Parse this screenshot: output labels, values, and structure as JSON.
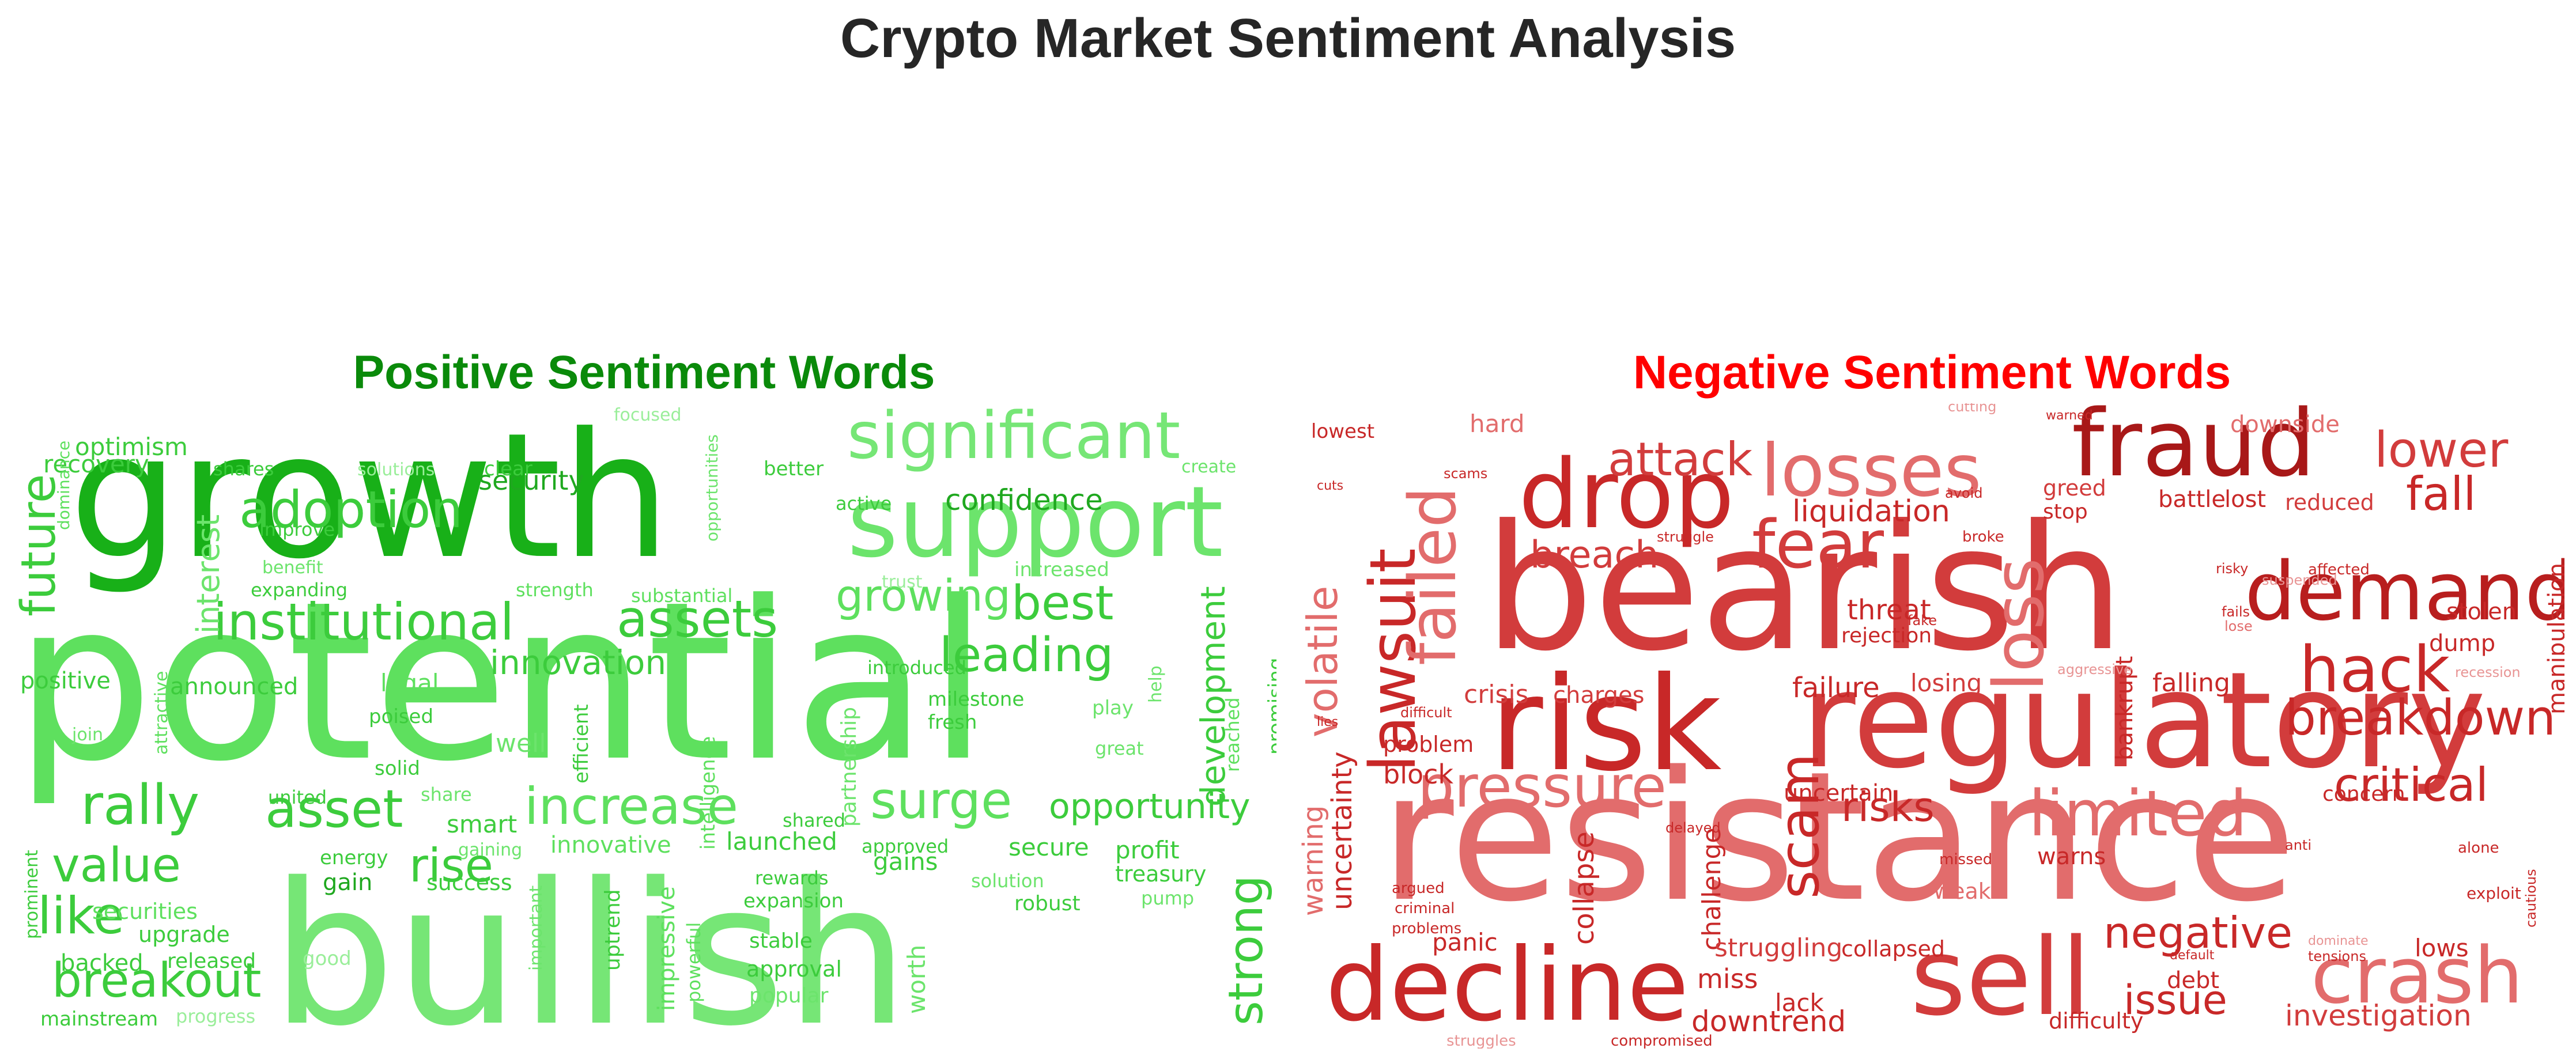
{
  "title": "Crypto Market Sentiment Analysis",
  "panels": {
    "positive": {
      "title": "Positive Sentiment Words",
      "title_color": "#0a8a0a",
      "words": [
        {
          "t": "growth",
          "c": "#18b018"
        },
        {
          "t": "potential",
          "c": "#5ee05e"
        },
        {
          "t": "bullish",
          "c": "#76e676"
        },
        {
          "t": "support",
          "c": "#6ce46c"
        },
        {
          "t": "significant",
          "c": "#76e676"
        },
        {
          "t": "institutional",
          "c": "#3ccc3c"
        },
        {
          "t": "adoption",
          "c": "#3ccc3c"
        },
        {
          "t": "assets",
          "c": "#3ccc3c"
        },
        {
          "t": "growing",
          "c": "#5ee05e"
        },
        {
          "t": "best",
          "c": "#3ccc3c"
        },
        {
          "t": "leading",
          "c": "#3ccc3c"
        },
        {
          "t": "rally",
          "c": "#3ccc3c"
        },
        {
          "t": "asset",
          "c": "#3ccc3c"
        },
        {
          "t": "increase",
          "c": "#5ee05e"
        },
        {
          "t": "surge",
          "c": "#5ee05e"
        },
        {
          "t": "opportunity",
          "c": "#3ccc3c"
        },
        {
          "t": "breakout",
          "c": "#3ccc3c"
        },
        {
          "t": "like",
          "c": "#3ccc3c"
        },
        {
          "t": "value",
          "c": "#3ccc3c"
        },
        {
          "t": "rise",
          "c": "#3ccc3c"
        },
        {
          "t": "strong",
          "c": "#3ccc3c"
        },
        {
          "t": "future",
          "c": "#3ccc3c"
        },
        {
          "t": "innovation",
          "c": "#3ccc3c"
        },
        {
          "t": "development",
          "c": "#3ccc3c"
        },
        {
          "t": "confidence",
          "c": "#1fa81f"
        },
        {
          "t": "security",
          "c": "#1fa81f"
        },
        {
          "t": "optimism",
          "c": "#3ccc3c"
        },
        {
          "t": "recovery",
          "c": "#3ccc3c"
        },
        {
          "t": "interest",
          "c": "#6ce46c"
        },
        {
          "t": "positive",
          "c": "#3ccc3c"
        },
        {
          "t": "announced",
          "c": "#3ccc3c"
        },
        {
          "t": "legal",
          "c": "#5ee05e"
        },
        {
          "t": "well",
          "c": "#6ce46c"
        },
        {
          "t": "smart",
          "c": "#3ccc3c"
        },
        {
          "t": "launched",
          "c": "#3ccc3c"
        },
        {
          "t": "innovative",
          "c": "#5ee05e"
        },
        {
          "t": "secure",
          "c": "#3ccc3c"
        },
        {
          "t": "profit",
          "c": "#3ccc3c"
        },
        {
          "t": "gains",
          "c": "#3ccc3c"
        },
        {
          "t": "treasury",
          "c": "#3ccc3c"
        },
        {
          "t": "success",
          "c": "#3ccc3c"
        },
        {
          "t": "gain",
          "c": "#1fa81f"
        },
        {
          "t": "energy",
          "c": "#3ccc3c"
        },
        {
          "t": "securities",
          "c": "#5ee05e"
        },
        {
          "t": "upgrade",
          "c": "#3ccc3c"
        },
        {
          "t": "released",
          "c": "#3ccc3c"
        },
        {
          "t": "backed",
          "c": "#3ccc3c"
        },
        {
          "t": "mainstream",
          "c": "#3ccc3c"
        },
        {
          "t": "progress",
          "c": "#9aee9a"
        },
        {
          "t": "good",
          "c": "#9aee9a"
        },
        {
          "t": "worth",
          "c": "#6ce46c"
        },
        {
          "t": "popular",
          "c": "#6ce46c"
        },
        {
          "t": "approval",
          "c": "#3ccc3c"
        },
        {
          "t": "stable",
          "c": "#3ccc3c"
        },
        {
          "t": "robust",
          "c": "#3ccc3c"
        },
        {
          "t": "pump",
          "c": "#6ce46c"
        },
        {
          "t": "solution",
          "c": "#6ce46c"
        },
        {
          "t": "expansion",
          "c": "#3ccc3c"
        },
        {
          "t": "rewards",
          "c": "#3ccc3c"
        },
        {
          "t": "approved",
          "c": "#3ccc3c"
        },
        {
          "t": "shared",
          "c": "#3ccc3c"
        },
        {
          "t": "fresh",
          "c": "#3ccc3c"
        },
        {
          "t": "milestone",
          "c": "#3ccc3c"
        },
        {
          "t": "play",
          "c": "#6ce46c"
        },
        {
          "t": "great",
          "c": "#6ce46c"
        },
        {
          "t": "help",
          "c": "#6ce46c"
        },
        {
          "t": "reached",
          "c": "#5ee05e"
        },
        {
          "t": "promising",
          "c": "#3ccc3c"
        },
        {
          "t": "introduced",
          "c": "#3ccc3c"
        },
        {
          "t": "partnership",
          "c": "#6ce46c"
        },
        {
          "t": "intelligence",
          "c": "#5ee05e"
        },
        {
          "t": "efficient",
          "c": "#3ccc3c"
        },
        {
          "t": "strength",
          "c": "#5ee05e"
        },
        {
          "t": "substantial",
          "c": "#5ee05e"
        },
        {
          "t": "expanding",
          "c": "#3ccc3c"
        },
        {
          "t": "benefit",
          "c": "#6ce46c"
        },
        {
          "t": "improve",
          "c": "#3ccc3c"
        },
        {
          "t": "poised",
          "c": "#3ccc3c"
        },
        {
          "t": "solid",
          "c": "#3ccc3c"
        },
        {
          "t": "join",
          "c": "#6ce46c"
        },
        {
          "t": "attractive",
          "c": "#5ee05e"
        },
        {
          "t": "united",
          "c": "#3ccc3c"
        },
        {
          "t": "share",
          "c": "#6ce46c"
        },
        {
          "t": "gaining",
          "c": "#6ce46c"
        },
        {
          "t": "important",
          "c": "#6ce46c"
        },
        {
          "t": "uptrend",
          "c": "#3ccc3c"
        },
        {
          "t": "impressive",
          "c": "#5ee05e"
        },
        {
          "t": "powerful",
          "c": "#5ee05e"
        },
        {
          "t": "prominent",
          "c": "#3ccc3c"
        },
        {
          "t": "dominance",
          "c": "#5ee05e"
        },
        {
          "t": "shares",
          "c": "#3ccc3c"
        },
        {
          "t": "solutions",
          "c": "#9aee9a"
        },
        {
          "t": "clear",
          "c": "#3ccc3c"
        },
        {
          "t": "focused",
          "c": "#9aee9a"
        },
        {
          "t": "better",
          "c": "#3ccc3c"
        },
        {
          "t": "opportunities",
          "c": "#6ce46c"
        },
        {
          "t": "active",
          "c": "#3ccc3c"
        },
        {
          "t": "trust",
          "c": "#9aee9a"
        },
        {
          "t": "increased",
          "c": "#6ce46c"
        },
        {
          "t": "create",
          "c": "#6ce46c"
        }
      ]
    },
    "negative": {
      "title": "Negative Sentiment Words",
      "title_color": "#ff0000",
      "words": [
        {
          "t": "bearish",
          "c": "#d23c3c"
        },
        {
          "t": "resistance",
          "c": "#e26c6c"
        },
        {
          "t": "regulatory",
          "c": "#d23c3c"
        },
        {
          "t": "risk",
          "c": "#c82828"
        },
        {
          "t": "decline",
          "c": "#c82828"
        },
        {
          "t": "sell",
          "c": "#d23c3c"
        },
        {
          "t": "fraud",
          "c": "#a81818"
        },
        {
          "t": "drop",
          "c": "#c82828"
        },
        {
          "t": "losses",
          "c": "#e26c6c"
        },
        {
          "t": "demand",
          "c": "#b81e1e"
        },
        {
          "t": "loss",
          "c": "#e26c6c"
        },
        {
          "t": "fear",
          "c": "#d23c3c"
        },
        {
          "t": "lawsuit",
          "c": "#c82828"
        },
        {
          "t": "failed",
          "c": "#e26c6c"
        },
        {
          "t": "pressure",
          "c": "#e26c6c"
        },
        {
          "t": "limited",
          "c": "#e26c6c"
        },
        {
          "t": "crash",
          "c": "#e26c6c"
        },
        {
          "t": "hack",
          "c": "#c82828"
        },
        {
          "t": "breakdown",
          "c": "#c82828"
        },
        {
          "t": "critical",
          "c": "#c82828"
        },
        {
          "t": "lower",
          "c": "#d23c3c"
        },
        {
          "t": "fall",
          "c": "#c82828"
        },
        {
          "t": "negative",
          "c": "#c82828"
        },
        {
          "t": "scam",
          "c": "#c82828"
        },
        {
          "t": "risks",
          "c": "#c82828"
        },
        {
          "t": "volatile",
          "c": "#e26c6c"
        },
        {
          "t": "attack",
          "c": "#d23c3c"
        },
        {
          "t": "breach",
          "c": "#d23c3c"
        },
        {
          "t": "liquidation",
          "c": "#c82828"
        },
        {
          "t": "issue",
          "c": "#c82828"
        },
        {
          "t": "downtrend",
          "c": "#c82828"
        },
        {
          "t": "investigation",
          "c": "#d23c3c"
        },
        {
          "t": "uncertainty",
          "c": "#c82828"
        },
        {
          "t": "warning",
          "c": "#e26c6c"
        },
        {
          "t": "collapse",
          "c": "#c82828"
        },
        {
          "t": "challenge",
          "c": "#c82828"
        },
        {
          "t": "struggling",
          "c": "#d23c3c"
        },
        {
          "t": "collapsed",
          "c": "#c82828"
        },
        {
          "t": "miss",
          "c": "#c82828"
        },
        {
          "t": "lack",
          "c": "#c82828"
        },
        {
          "t": "debt",
          "c": "#c82828"
        },
        {
          "t": "difficulty",
          "c": "#c82828"
        },
        {
          "t": "lows",
          "c": "#c82828"
        },
        {
          "t": "panic",
          "c": "#c82828"
        },
        {
          "t": "block",
          "c": "#c82828"
        },
        {
          "t": "problem",
          "c": "#c82828"
        },
        {
          "t": "crisis",
          "c": "#d23c3c"
        },
        {
          "t": "charges",
          "c": "#d23c3c"
        },
        {
          "t": "failure",
          "c": "#c82828"
        },
        {
          "t": "losing",
          "c": "#d23c3c"
        },
        {
          "t": "falling",
          "c": "#c82828"
        },
        {
          "t": "threat",
          "c": "#c82828"
        },
        {
          "t": "rejection",
          "c": "#c82828"
        },
        {
          "t": "uncertain",
          "c": "#c82828"
        },
        {
          "t": "warns",
          "c": "#c82828"
        },
        {
          "t": "weak",
          "c": "#e26c6c"
        },
        {
          "t": "concern",
          "c": "#c82828"
        },
        {
          "t": "dump",
          "c": "#c82828"
        },
        {
          "t": "stolen",
          "c": "#c82828"
        },
        {
          "t": "manipulation",
          "c": "#c82828"
        },
        {
          "t": "bankrupt",
          "c": "#c82828"
        },
        {
          "t": "greed",
          "c": "#d23c3c"
        },
        {
          "t": "stop",
          "c": "#c82828"
        },
        {
          "t": "battle",
          "c": "#c82828"
        },
        {
          "t": "lost",
          "c": "#c82828"
        },
        {
          "t": "reduced",
          "c": "#d23c3c"
        },
        {
          "t": "downside",
          "c": "#e26c6c"
        },
        {
          "t": "hard",
          "c": "#e26c6c"
        },
        {
          "t": "lowest",
          "c": "#c82828"
        },
        {
          "t": "exploit",
          "c": "#c82828"
        },
        {
          "t": "cautious",
          "c": "#c82828"
        },
        {
          "t": "alone",
          "c": "#c82828"
        },
        {
          "t": "recession",
          "c": "#e89494"
        },
        {
          "t": "fails",
          "c": "#c82828"
        },
        {
          "t": "lose",
          "c": "#e26c6c"
        },
        {
          "t": "risky",
          "c": "#c82828"
        },
        {
          "t": "suspended",
          "c": "#e89494"
        },
        {
          "t": "affected",
          "c": "#c82828"
        },
        {
          "t": "aggressive",
          "c": "#e89494"
        },
        {
          "t": "anti",
          "c": "#c82828"
        },
        {
          "t": "default",
          "c": "#c82828"
        },
        {
          "t": "dominate",
          "c": "#e89494"
        },
        {
          "t": "tensions",
          "c": "#c82828"
        },
        {
          "t": "struggle",
          "c": "#c82828"
        },
        {
          "t": "broke",
          "c": "#c82828"
        },
        {
          "t": "avoid",
          "c": "#c82828"
        },
        {
          "t": "cutting",
          "c": "#e89494"
        },
        {
          "t": "warned",
          "c": "#c82828"
        },
        {
          "t": "scams",
          "c": "#c82828"
        },
        {
          "t": "cuts",
          "c": "#c82828"
        },
        {
          "t": "lies",
          "c": "#c82828"
        },
        {
          "t": "difficult",
          "c": "#c82828"
        },
        {
          "t": "argued",
          "c": "#c82828"
        },
        {
          "t": "criminal",
          "c": "#c82828"
        },
        {
          "t": "problems",
          "c": "#c82828"
        },
        {
          "t": "delayed",
          "c": "#c82828"
        },
        {
          "t": "fake",
          "c": "#c82828"
        },
        {
          "t": "missed",
          "c": "#c82828"
        },
        {
          "t": "struggles",
          "c": "#e89494"
        },
        {
          "t": "compromised",
          "c": "#c82828"
        }
      ]
    }
  }
}
